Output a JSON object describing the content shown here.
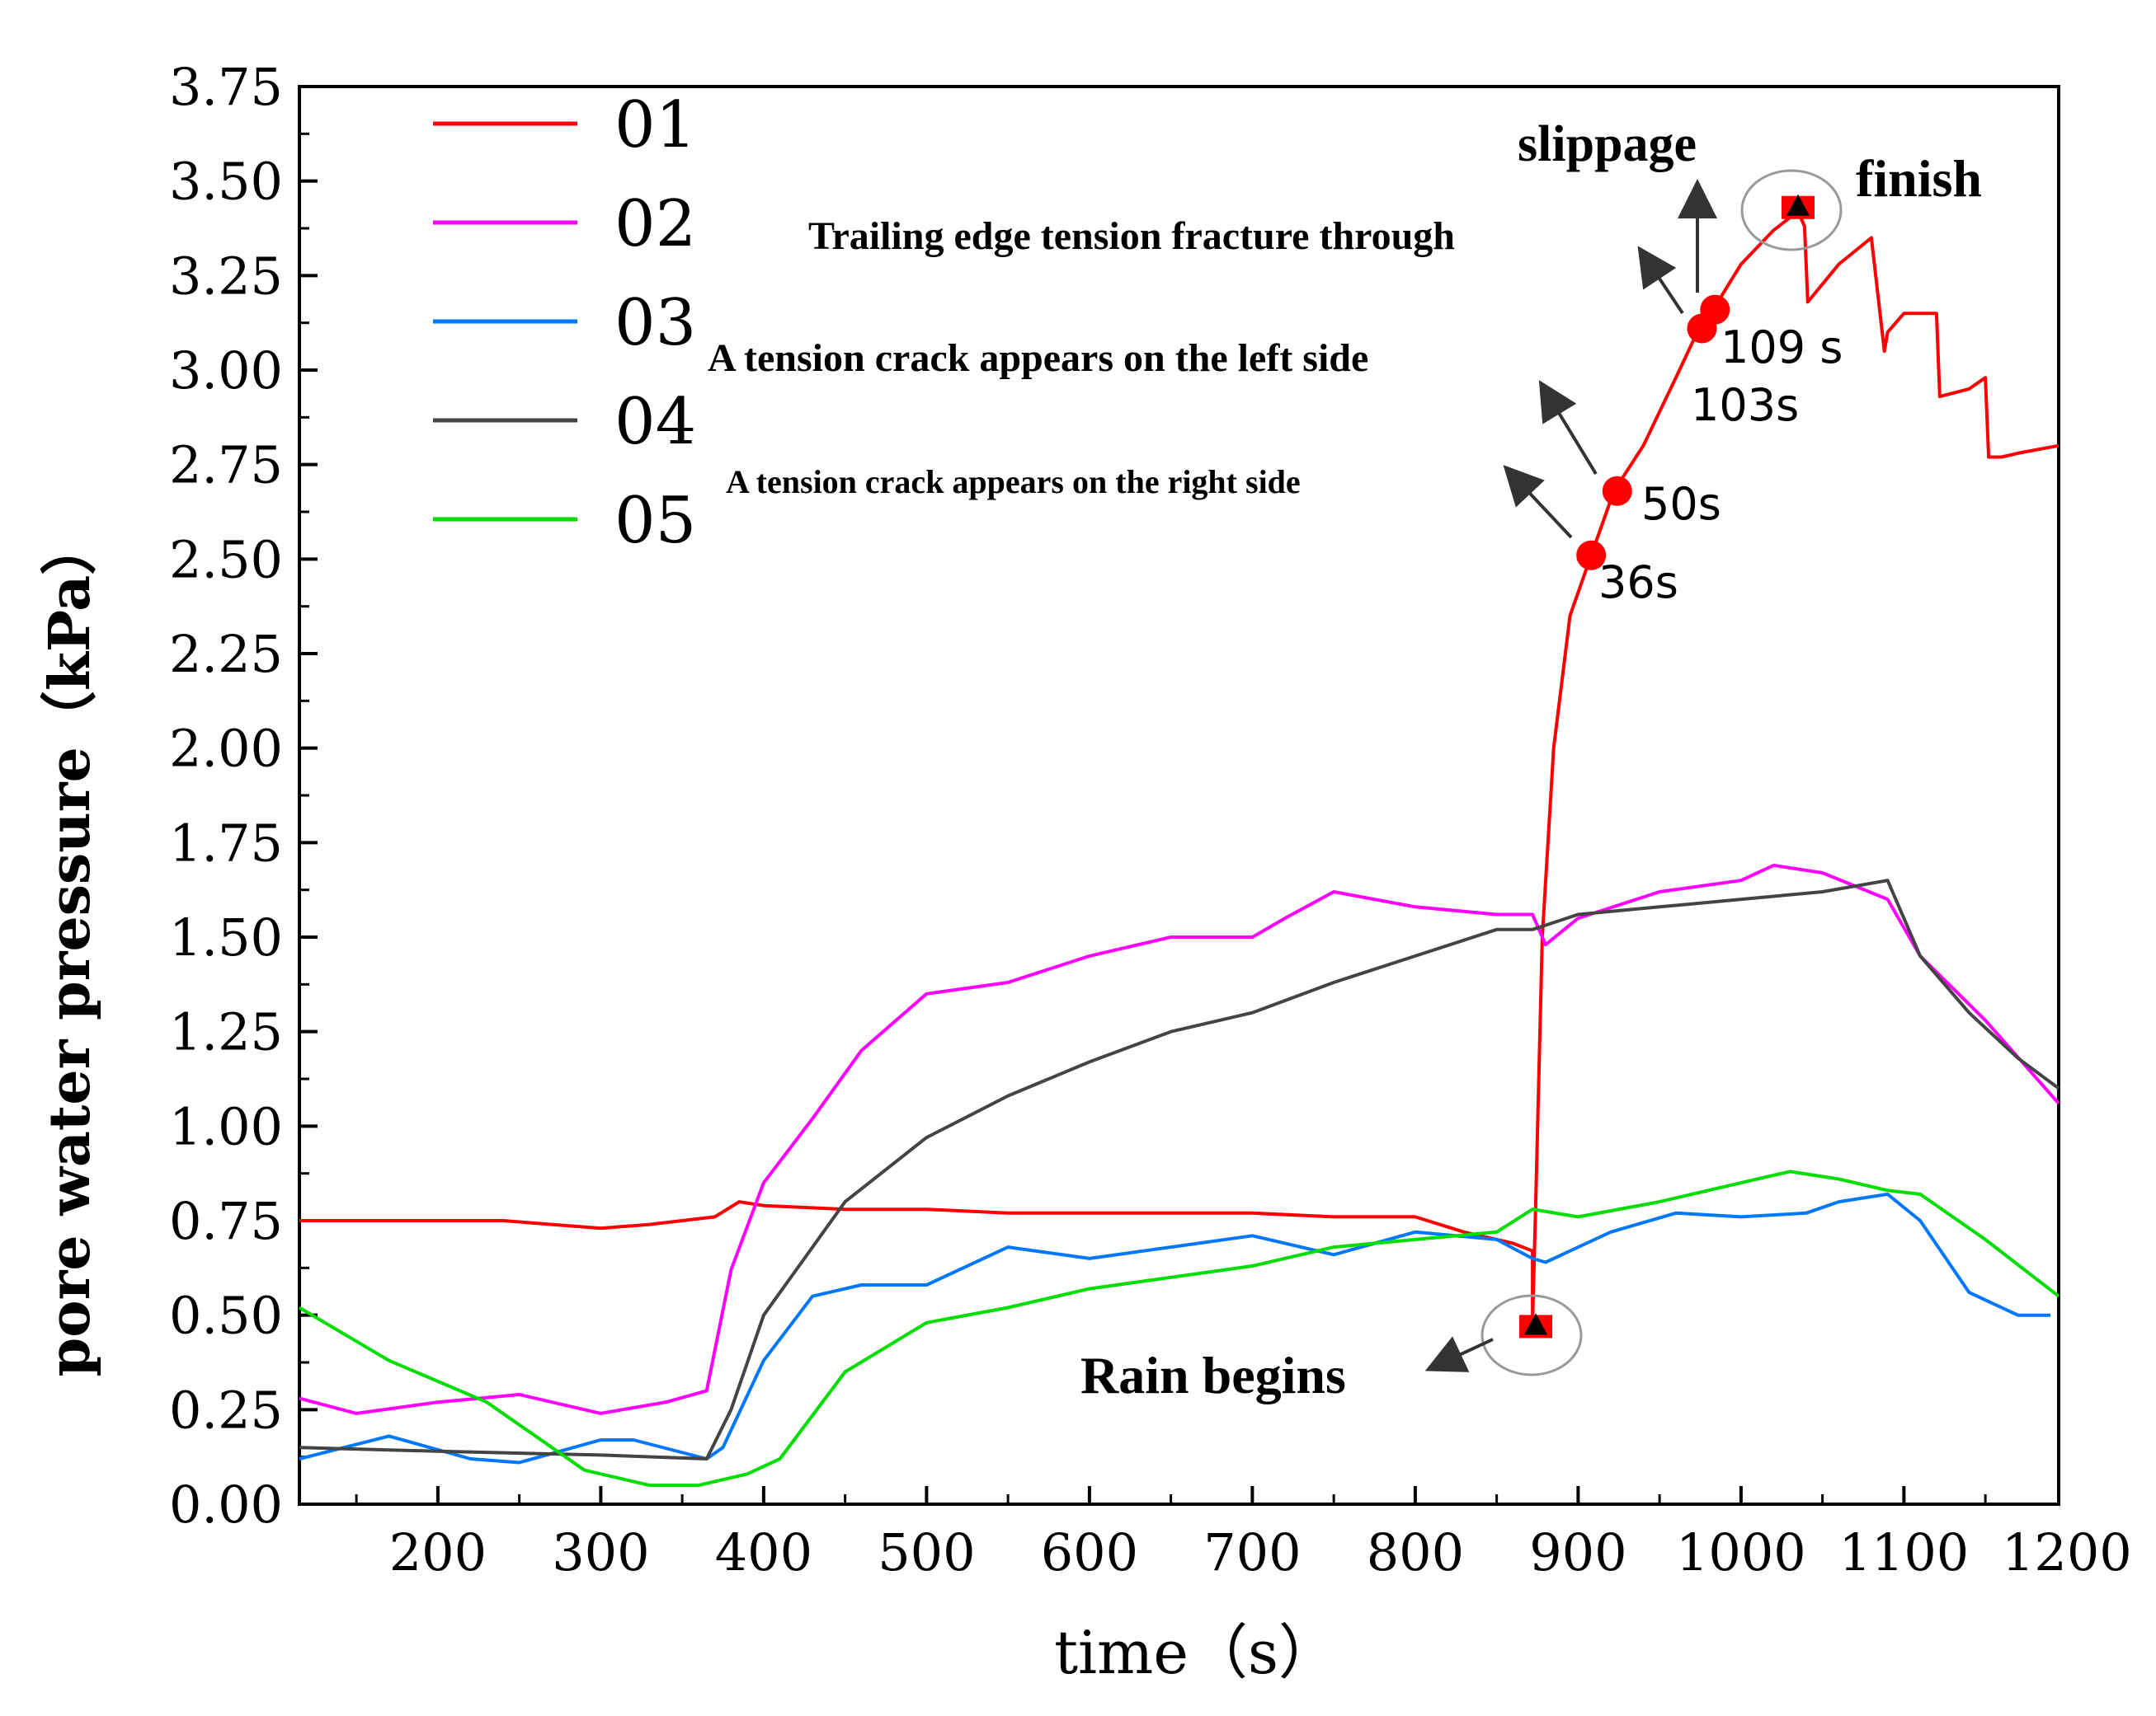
{
  "chart_data": {
    "type": "line",
    "xlabel": "time（s）",
    "ylabel": "pore water pressure（kPa）",
    "xlim": [
      115,
      1195
    ],
    "ylim": [
      0,
      3.75
    ],
    "xticks": [
      200,
      300,
      400,
      500,
      600,
      700,
      800,
      900,
      1000,
      1100,
      1200
    ],
    "xtick_labels": [
      "200",
      "300",
      "400",
      "500",
      "600",
      "700",
      "800",
      "900",
      "1000",
      "1100",
      "1200"
    ],
    "yticks": [
      0,
      0.25,
      0.5,
      0.75,
      1.0,
      1.25,
      1.5,
      1.75,
      2.0,
      2.25,
      2.5,
      2.75,
      3.0,
      3.25,
      3.5,
      3.75
    ],
    "ytick_labels": [
      "0.00",
      "0.25",
      "0.50",
      "0.75",
      "1.00",
      "1.25",
      "1.50",
      "1.75",
      "2.00",
      "2.25",
      "2.50",
      "2.75",
      "3.00",
      "3.25",
      "3.50",
      "3.75"
    ],
    "grid": false,
    "legend_position": "top-left",
    "series": [
      {
        "name": "01",
        "color": "#ff0000",
        "x": [
          115,
          180,
          240,
          300,
          330,
          370,
          385,
          400,
          450,
          500,
          550,
          600,
          650,
          700,
          750,
          800,
          830,
          860,
          872,
          872,
          874,
          878,
          885,
          895,
          908,
          922,
          940,
          960,
          972,
          980,
          1000,
          1020,
          1035,
          1039,
          1041,
          1060,
          1080,
          1088,
          1090,
          1100,
          1120,
          1122,
          1140,
          1150,
          1152,
          1160,
          1170,
          1195
        ],
        "y": [
          0.75,
          0.75,
          0.75,
          0.73,
          0.74,
          0.76,
          0.8,
          0.79,
          0.78,
          0.78,
          0.77,
          0.77,
          0.77,
          0.77,
          0.76,
          0.76,
          0.72,
          0.69,
          0.67,
          0.48,
          0.8,
          1.5,
          2.0,
          2.35,
          2.51,
          2.68,
          2.8,
          2.98,
          3.09,
          3.14,
          3.28,
          3.37,
          3.42,
          3.38,
          3.18,
          3.28,
          3.35,
          3.05,
          3.1,
          3.15,
          3.15,
          2.93,
          2.95,
          2.98,
          2.77,
          2.77,
          2.78,
          2.8
        ]
      },
      {
        "name": "02",
        "color": "#ff00ff",
        "x": [
          115,
          150,
          200,
          250,
          300,
          340,
          365,
          380,
          400,
          430,
          460,
          500,
          550,
          600,
          650,
          700,
          720,
          750,
          800,
          850,
          872,
          880,
          900,
          950,
          1000,
          1020,
          1050,
          1090,
          1110,
          1150,
          1195
        ],
        "y": [
          0.28,
          0.24,
          0.27,
          0.29,
          0.24,
          0.27,
          0.3,
          0.62,
          0.85,
          1.02,
          1.2,
          1.35,
          1.38,
          1.45,
          1.5,
          1.5,
          1.55,
          1.62,
          1.58,
          1.56,
          1.56,
          1.48,
          1.55,
          1.62,
          1.65,
          1.69,
          1.67,
          1.6,
          1.45,
          1.28,
          1.06
        ]
      },
      {
        "name": "03",
        "color": "#0077ff",
        "x": [
          115,
          170,
          220,
          250,
          300,
          320,
          365,
          375,
          400,
          430,
          460,
          500,
          550,
          600,
          650,
          700,
          750,
          800,
          850,
          872,
          880,
          920,
          960,
          1000,
          1040,
          1060,
          1090,
          1110,
          1140,
          1170,
          1190
        ],
        "y": [
          0.12,
          0.18,
          0.12,
          0.11,
          0.17,
          0.17,
          0.12,
          0.15,
          0.38,
          0.55,
          0.58,
          0.58,
          0.68,
          0.65,
          0.68,
          0.71,
          0.66,
          0.72,
          0.7,
          0.65,
          0.64,
          0.72,
          0.77,
          0.76,
          0.77,
          0.8,
          0.82,
          0.75,
          0.56,
          0.5,
          0.5
        ]
      },
      {
        "name": "04",
        "color": "#444444",
        "x": [
          115,
          200,
          300,
          365,
          380,
          400,
          450,
          500,
          550,
          600,
          650,
          700,
          750,
          800,
          850,
          872,
          900,
          950,
          1000,
          1050,
          1090,
          1110,
          1140,
          1170,
          1195
        ],
        "y": [
          0.15,
          0.14,
          0.13,
          0.12,
          0.25,
          0.5,
          0.8,
          0.97,
          1.08,
          1.17,
          1.25,
          1.3,
          1.38,
          1.45,
          1.52,
          1.52,
          1.56,
          1.58,
          1.6,
          1.62,
          1.65,
          1.45,
          1.3,
          1.18,
          1.1
        ]
      },
      {
        "name": "05",
        "color": "#00dd00",
        "x": [
          115,
          170,
          230,
          290,
          330,
          360,
          390,
          410,
          450,
          500,
          550,
          600,
          650,
          700,
          750,
          800,
          850,
          872,
          900,
          950,
          1000,
          1030,
          1060,
          1090,
          1110,
          1150,
          1195
        ],
        "y": [
          0.52,
          0.38,
          0.27,
          0.09,
          0.05,
          0.05,
          0.08,
          0.12,
          0.35,
          0.48,
          0.52,
          0.57,
          0.6,
          0.63,
          0.68,
          0.7,
          0.72,
          0.78,
          0.76,
          0.8,
          0.85,
          0.88,
          0.86,
          0.83,
          0.82,
          0.7,
          0.55
        ]
      }
    ],
    "markers": [
      {
        "shape": "triangle",
        "x": 874,
        "y": 0.47
      },
      {
        "shape": "circle",
        "x": 908,
        "y": 2.51
      },
      {
        "shape": "circle",
        "x": 924,
        "y": 2.68
      },
      {
        "shape": "circle",
        "x": 976,
        "y": 3.11
      },
      {
        "shape": "circle",
        "x": 984,
        "y": 3.16
      },
      {
        "shape": "triangle",
        "x": 1035,
        "y": 3.43
      }
    ],
    "annotations": {
      "rain_begins": "Rain begins",
      "finish": "finish",
      "slippage": "slippage",
      "trailing_edge": "Trailing edge tension fracture through",
      "left_crack": "A tension crack appears on the left side",
      "right_crack": "A tension crack appears on the right side",
      "t36": "36s",
      "t50": "50s",
      "t103": "103s",
      "t109": "109 s"
    }
  }
}
